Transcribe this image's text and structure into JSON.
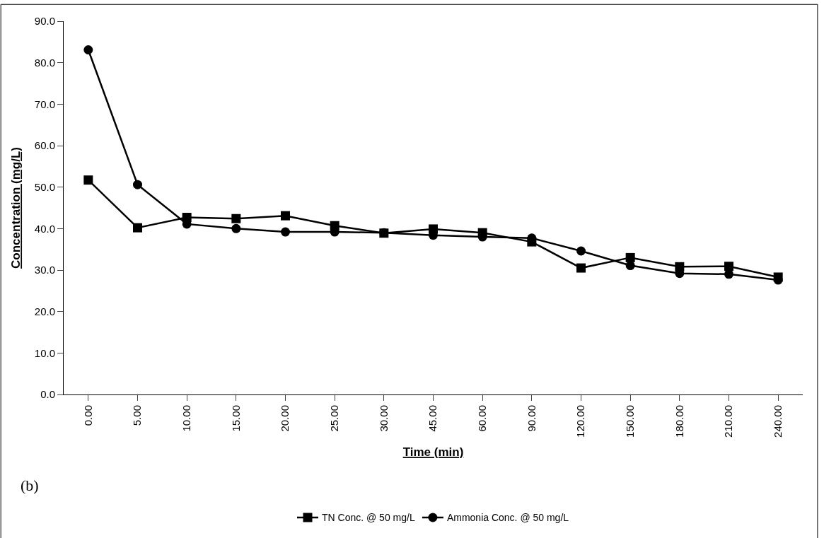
{
  "chart_data": {
    "type": "line",
    "xlabel": "Time (min)",
    "ylabel": "Concentration (mg/L)",
    "categories": [
      "0.00",
      "5.00",
      "10.00",
      "15.00",
      "20.00",
      "25.00",
      "30.00",
      "45.00",
      "60.00",
      "90.00",
      "120.00",
      "150.00",
      "180.00",
      "210.00",
      "240.00"
    ],
    "series": [
      {
        "name": "TN Conc. @ 50 mg/L",
        "color": "#000000",
        "marker": "square",
        "values": [
          51.7,
          40.2,
          42.7,
          42.4,
          43.1,
          40.7,
          38.9,
          39.9,
          39.0,
          36.8,
          30.5,
          33.0,
          30.8,
          30.9,
          28.3
        ]
      },
      {
        "name": "Ammonia Conc. @ 50 mg/L",
        "color": "#000000",
        "marker": "circle",
        "values": [
          83.1,
          50.6,
          41.1,
          40.0,
          39.2,
          39.2,
          39.0,
          38.4,
          38.0,
          37.7,
          34.6,
          31.1,
          29.2,
          29.0,
          27.6
        ]
      }
    ],
    "ylim": [
      0,
      90
    ],
    "yticks": [
      {
        "value": 0,
        "label": "0.0"
      },
      {
        "value": 10,
        "label": "10.0"
      },
      {
        "value": 20,
        "label": "20.0"
      },
      {
        "value": 30,
        "label": "30.0"
      },
      {
        "value": 40,
        "label": "40.0"
      },
      {
        "value": 50,
        "label": "50.0"
      },
      {
        "value": 60,
        "label": "60.0"
      },
      {
        "value": 70,
        "label": "70.0"
      },
      {
        "value": 80,
        "label": "80.0"
      },
      {
        "value": 90,
        "label": "90.0"
      }
    ],
    "legend": "bottom",
    "line_style": "solid",
    "annotations": [
      "(b)"
    ]
  }
}
